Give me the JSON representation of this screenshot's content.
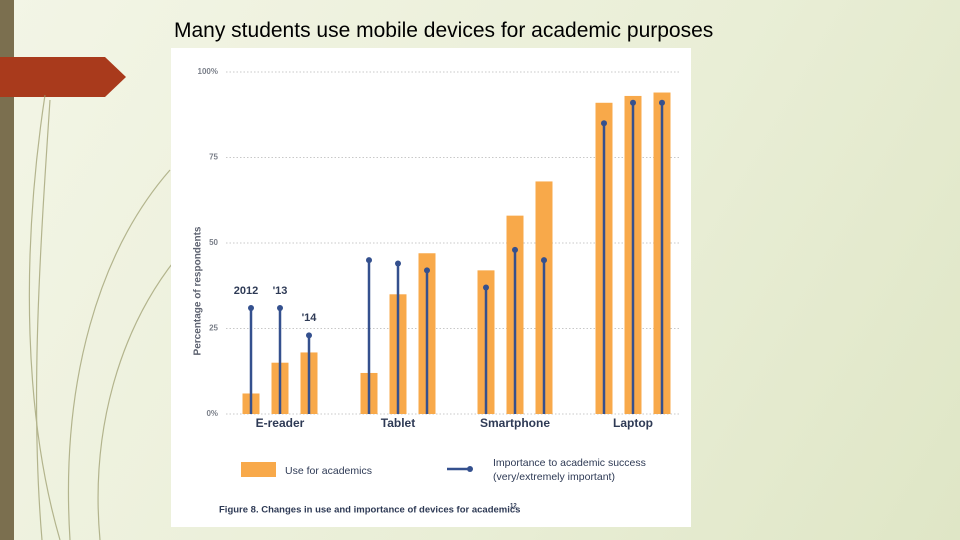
{
  "slide": {
    "title": "Many students use mobile devices for academic purposes"
  },
  "chart_data": {
    "type": "bar-lollipop",
    "y_label": "Percentage of respondents",
    "caption": "Figure 8. Changes in use and importance of devices for academics",
    "caption_note": "12",
    "categories": [
      "E-reader",
      "Tablet",
      "Smartphone",
      "Laptop"
    ],
    "years": [
      "2012",
      "'13",
      "'14"
    ],
    "series": [
      {
        "name": "Use for academics",
        "kind": "bar",
        "color": "#f8a94a",
        "values": [
          [
            6,
            15,
            18
          ],
          [
            12,
            35,
            47
          ],
          [
            42,
            58,
            68
          ],
          [
            91,
            93,
            94
          ]
        ]
      },
      {
        "name": "Importance to academic success (very/extremely important)",
        "kind": "lollipop",
        "color": "#34508e",
        "values": [
          [
            31,
            31,
            23
          ],
          [
            45,
            44,
            42
          ],
          [
            37,
            48,
            45
          ],
          [
            85,
            91,
            91
          ]
        ]
      }
    ],
    "ylim": [
      0,
      100
    ],
    "yticks": [
      {
        "value": 0,
        "label": "0%"
      },
      25,
      50,
      75,
      {
        "value": 100,
        "label": "100%"
      }
    ],
    "grid": true
  }
}
